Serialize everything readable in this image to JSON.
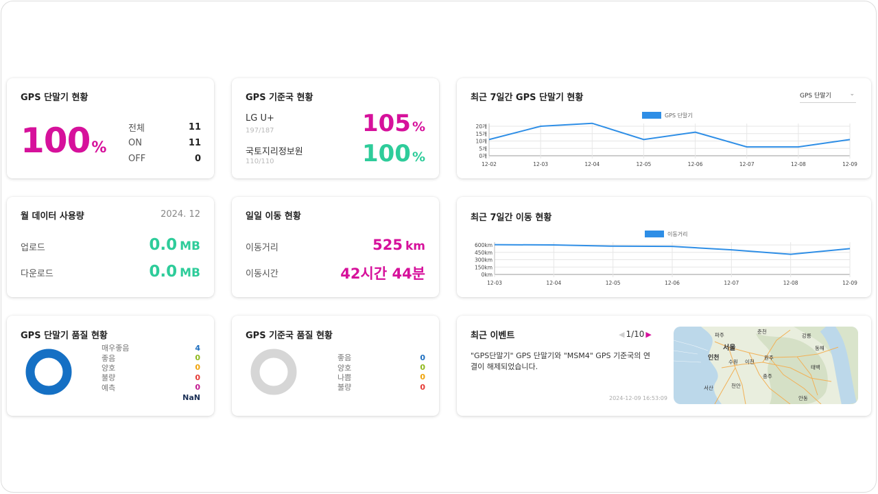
{
  "gps_terminal_status": {
    "title": "GPS 단말기 현황",
    "percent": "100",
    "unit": "%",
    "rows": [
      {
        "label": "전체",
        "value": "11"
      },
      {
        "label": "ON",
        "value": "11"
      },
      {
        "label": "OFF",
        "value": "0"
      }
    ]
  },
  "base_station_status": {
    "title": "GPS 기준국 현황",
    "stations": [
      {
        "name": "LG U+",
        "sub": "197/187",
        "percent": "105",
        "unit": "%",
        "color": "#d6119b"
      },
      {
        "name": "국토지리정보원",
        "sub": "110/110",
        "percent": "100",
        "unit": "%",
        "color": "#2ecc9a"
      }
    ]
  },
  "weekly_terminal": {
    "title": "최근 7일간 GPS 단말기 현황",
    "select_value": "GPS 단말기",
    "chart_data": {
      "type": "line",
      "categories": [
        "12-02",
        "12-03",
        "12-04",
        "12-05",
        "12-06",
        "12-07",
        "12-08",
        "12-09"
      ],
      "series": [
        {
          "name": "GPS 단말기",
          "values": [
            11,
            20,
            22,
            11,
            16,
            6,
            6,
            11
          ]
        }
      ],
      "ylim": [
        0,
        20
      ],
      "yticks": [
        "0개",
        "5개",
        "10개",
        "15개",
        "20개"
      ],
      "legend": "top-center",
      "color": "#2e8ee6"
    }
  },
  "monthly_data": {
    "title": "월 데이터 사용량",
    "date": "2024. 12",
    "upload_label": "업로드",
    "upload_value": "0.0",
    "download_label": "다운로드",
    "download_value": "0.0",
    "unit": "MB"
  },
  "daily_movement": {
    "title": "일일 이동 현황",
    "distance_label": "이동거리",
    "distance_value": "525",
    "distance_unit": "km",
    "time_label": "이동시간",
    "time_value": "42시간 44분"
  },
  "weekly_movement": {
    "title": "최근 7일간 이동 현황",
    "chart_data": {
      "type": "line",
      "categories": [
        "12-03",
        "12-04",
        "12-05",
        "12-06",
        "12-07",
        "12-08",
        "12-09"
      ],
      "series": [
        {
          "name": "이동거리",
          "values": [
            605,
            600,
            575,
            570,
            500,
            410,
            525
          ]
        }
      ],
      "ylim": [
        0,
        600
      ],
      "yticks": [
        "0km",
        "150km",
        "300km",
        "450km",
        "600km"
      ],
      "legend": "top-center",
      "color": "#2e8ee6"
    }
  },
  "terminal_quality": {
    "title": "GPS 단말기 품질 현황",
    "chart_data": {
      "type": "pie",
      "categories": [
        "매우좋음",
        "좋음",
        "양호",
        "불량",
        "예측"
      ],
      "values": [
        4,
        0,
        0,
        0,
        0
      ]
    },
    "items": [
      {
        "label": "매우좋음",
        "value": "4",
        "color": "#1f6fbf"
      },
      {
        "label": "좋음",
        "value": "0",
        "color": "#8fb81c"
      },
      {
        "label": "양호",
        "value": "0",
        "color": "#f0a30a"
      },
      {
        "label": "불량",
        "value": "0",
        "color": "#e53935"
      },
      {
        "label": "예측",
        "value": "0",
        "color": "#c2188f"
      }
    ],
    "total": "NaN",
    "ring_color": "#1570c4"
  },
  "station_quality": {
    "title": "GPS 기준국 품질 현황",
    "items": [
      {
        "label": "좋음",
        "value": "0",
        "color": "#1f6fbf"
      },
      {
        "label": "양호",
        "value": "0",
        "color": "#8fb81c"
      },
      {
        "label": "나쁨",
        "value": "0",
        "color": "#f0a30a"
      },
      {
        "label": "불량",
        "value": "0",
        "color": "#e53935"
      }
    ],
    "ring_color": "#d6d6d6"
  },
  "recent_event": {
    "title": "최근 이벤트",
    "pager": "1/10",
    "message": "\"GPS단말기\" GPS 단말기와 \"MSM4\" GPS 기준국의 연결이 해제되었습니다.",
    "timestamp": "2024-12-09 16:53:09",
    "map_labels": [
      "춘천",
      "파주",
      "강릉",
      "서울",
      "인천",
      "수원",
      "이천",
      "원주",
      "동해",
      "태백",
      "충주",
      "서산",
      "천안",
      "안동"
    ]
  }
}
